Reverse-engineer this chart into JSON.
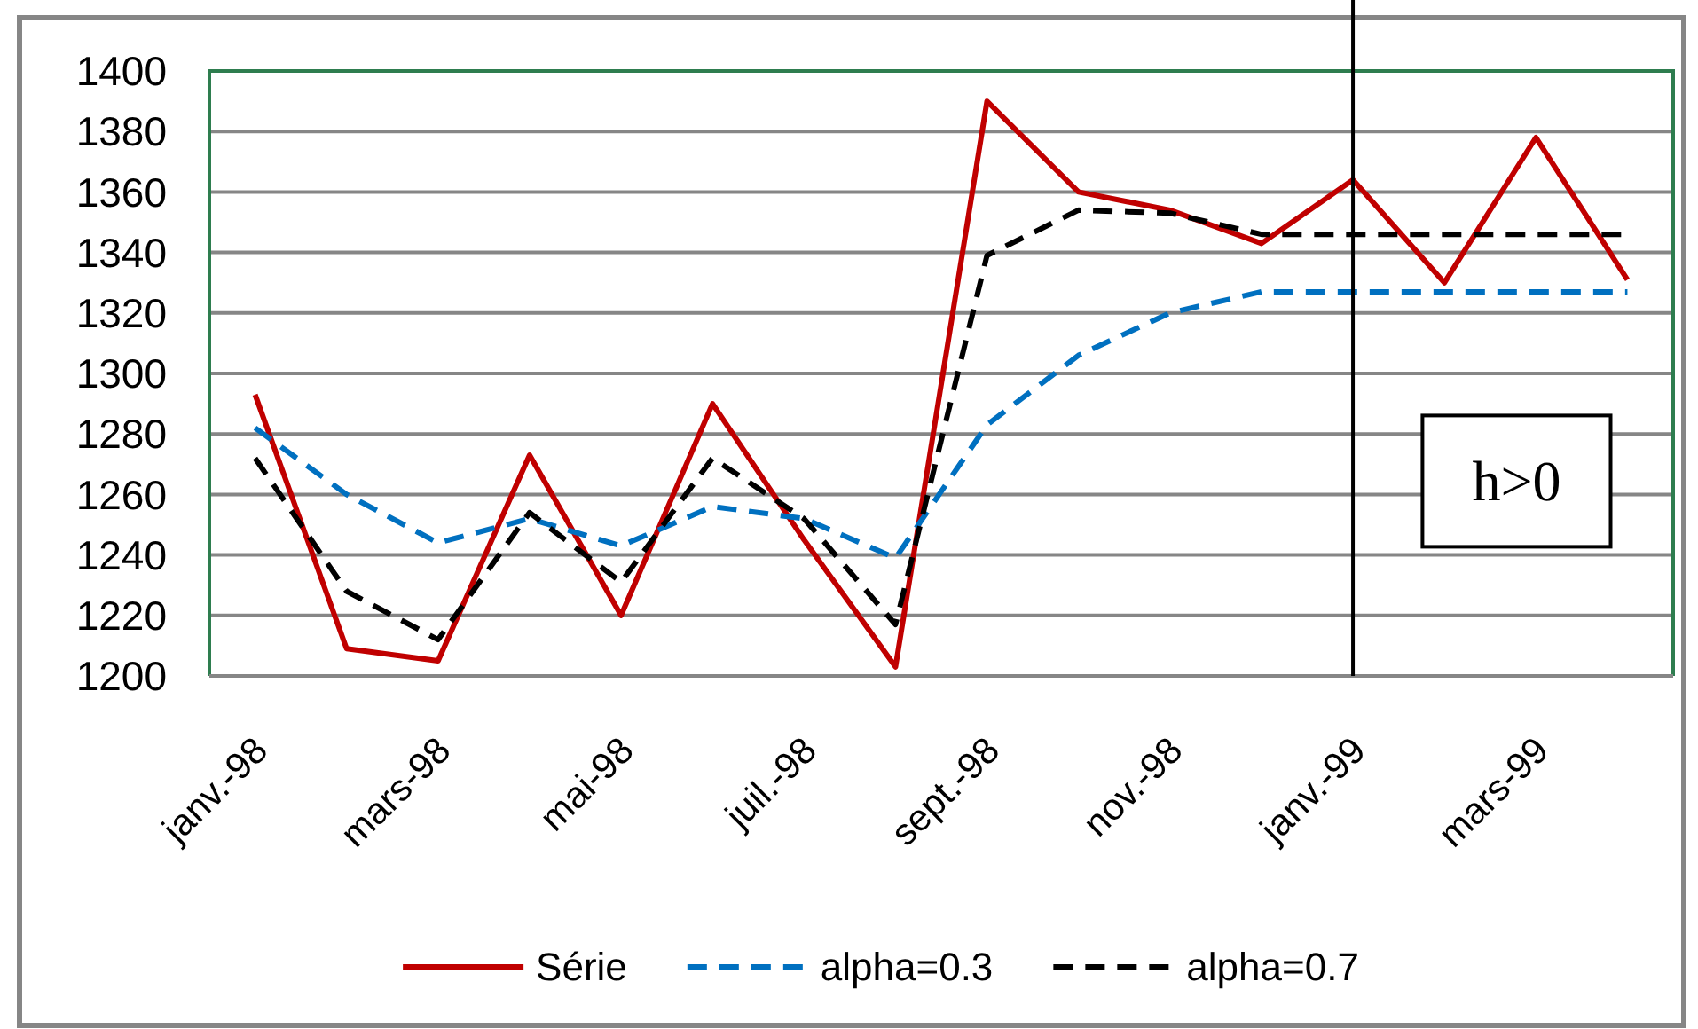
{
  "chart_data": {
    "type": "line",
    "categories": [
      "janv.-98",
      null,
      "mars-98",
      null,
      "mai-98",
      null,
      "juil.-98",
      null,
      "sept.-98",
      null,
      "nov.-98",
      null,
      "janv.-99",
      null,
      "mars-99",
      null
    ],
    "series": [
      {
        "name": "Série",
        "color": "#c00000",
        "line_style": "solid",
        "values": [
          1293,
          1209,
          1205,
          1273,
          1220,
          1290,
          1245,
          1203,
          1390,
          1360,
          1354,
          1343,
          1364,
          1330,
          1378,
          1331
        ]
      },
      {
        "name": "alpha=0.3",
        "color": "#0070c0",
        "line_style": "dashed",
        "values": [
          1282,
          1260,
          1244,
          1252,
          1243,
          1256,
          1252,
          1239,
          1283,
          1306,
          1320,
          1327,
          1327,
          1327,
          1327,
          1327
        ]
      },
      {
        "name": "alpha=0.7",
        "color": "#000000",
        "line_style": "dashed",
        "values": [
          1272,
          1228,
          1212,
          1254,
          1231,
          1272,
          1252,
          1217,
          1339,
          1354,
          1353,
          1346,
          1346,
          1346,
          1346,
          1346
        ]
      }
    ],
    "ylim": [
      1200,
      1400
    ],
    "yticks": [
      1200,
      1220,
      1240,
      1260,
      1280,
      1300,
      1320,
      1340,
      1360,
      1380,
      1400
    ],
    "grid": "y",
    "legend": "bottom",
    "ref_lines": [
      {
        "axis": "x",
        "value": "janv.-99",
        "color": "#000000"
      }
    ],
    "annotations": [
      "h>0"
    ]
  }
}
